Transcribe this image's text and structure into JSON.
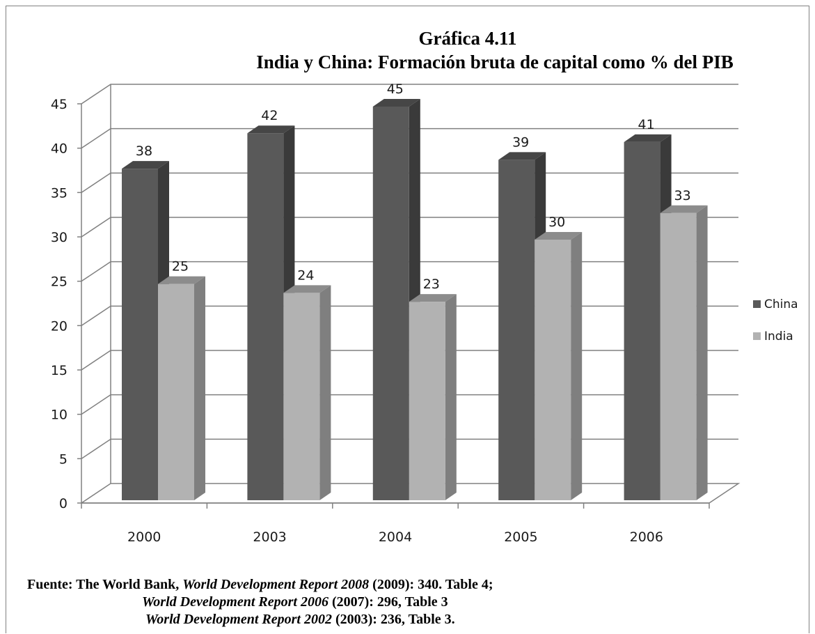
{
  "title": "Gráfica 4.11",
  "subtitle": "India y China: Formación bruta de capital como % del PIB",
  "chart_data": {
    "type": "bar",
    "categories": [
      "2000",
      "2003",
      "2004",
      "2005",
      "2006"
    ],
    "series": [
      {
        "name": "China",
        "values": [
          38,
          42,
          45,
          39,
          41
        ]
      },
      {
        "name": "India",
        "values": [
          25,
          24,
          23,
          30,
          33
        ]
      }
    ],
    "ylim": [
      0,
      45
    ],
    "yticks": [
      "0",
      "5",
      "10",
      "15",
      "20",
      "25",
      "30",
      "35",
      "40",
      "45"
    ],
    "grid": true,
    "legend": "right",
    "style": "3d-column"
  },
  "colors": {
    "china_front": "#595959",
    "china_side": "#3a3a3a",
    "china_top": "#464646",
    "india_front": "#b2b2b2",
    "india_side": "#7f7f7f",
    "india_top": "#8c8c8c"
  },
  "source": {
    "prefix": "Fuente: The World Bank, ",
    "r1_title": "World Development Report 2008",
    "r1_rest": " (2009): 340. Table 4;",
    "r2_title": "World Development Report 2006",
    "r2_rest": " (2007): 296, Table 3",
    "r3_title": "World Development Report 2002",
    "r3_rest": " (2003): 236, Table 3."
  }
}
